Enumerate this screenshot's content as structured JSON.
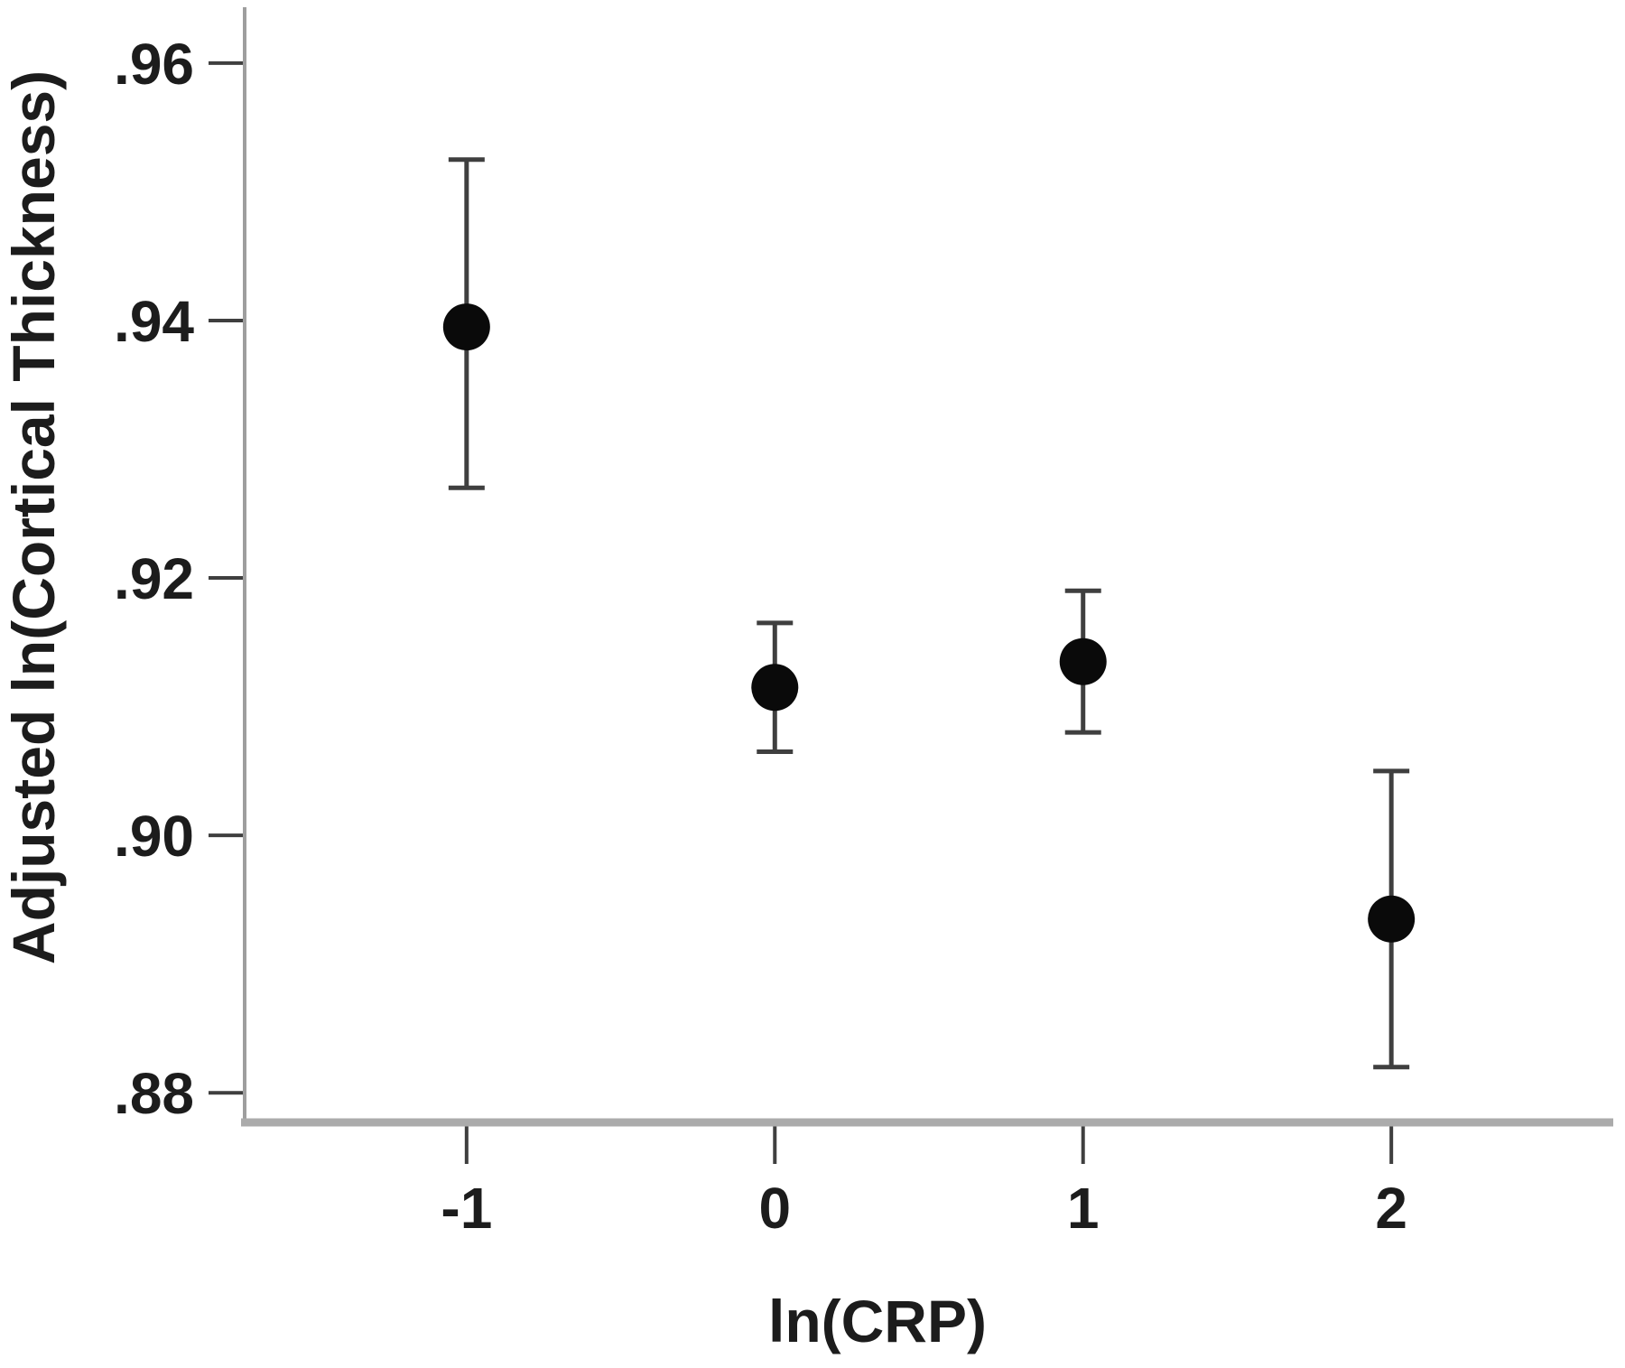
{
  "figure": {
    "background": "#ffffff"
  },
  "chart_data": {
    "type": "scatter",
    "subtype": "point-estimates-with-error-bars",
    "title": "",
    "xlabel": "ln(CRP)",
    "ylabel": "Adjusted ln(Cortical Thickness)",
    "x": [
      -1,
      0,
      1,
      2
    ],
    "series": [
      {
        "means": [
          0.9395,
          0.9115,
          0.9135,
          0.8935
        ],
        "ci_low": [
          0.927,
          0.9065,
          0.908,
          0.882
        ],
        "ci_high": [
          0.9525,
          0.9165,
          0.919,
          0.905
        ]
      }
    ],
    "x_ticks": [
      {
        "value": -1,
        "label": "-1"
      },
      {
        "value": 0,
        "label": "0"
      },
      {
        "value": 1,
        "label": "1"
      },
      {
        "value": 2,
        "label": "2"
      }
    ],
    "y_ticks": [
      {
        "value": 0.96,
        "label": ".96"
      },
      {
        "value": 0.94,
        "label": ".94"
      },
      {
        "value": 0.92,
        "label": ".92"
      },
      {
        "value": 0.9,
        "label": ".90"
      },
      {
        "value": 0.88,
        "label": ".88"
      }
    ],
    "xlim": [
      -1.72,
      2.72
    ],
    "ylim": [
      0.8777,
      0.9642
    ],
    "grid": false,
    "legend": "none",
    "marker_shape": "filled-circle",
    "colors": {
      "marker": "#0a0a0a",
      "error_bar": "#3f3f3f",
      "tick_mark": "#3f3f3f",
      "y_axis_line": "#9e9e9e",
      "x_axis_line": "#ababab",
      "text": "#1c1c1c"
    }
  }
}
